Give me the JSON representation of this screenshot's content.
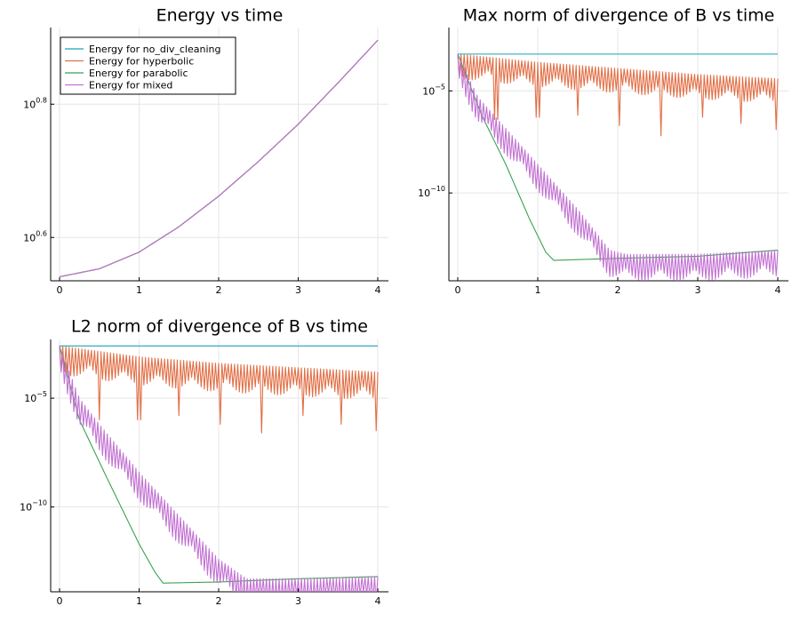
{
  "colors": {
    "no_div_cleaning": "#1aa3b8",
    "hyperbolic": "#e26f46",
    "parabolic": "#3ba151",
    "mixed": "#c271d2"
  },
  "legend": [
    {
      "key": "no_div_cleaning",
      "label": "Energy for no_div_cleaning"
    },
    {
      "key": "hyperbolic",
      "label": "Energy for hyperbolic"
    },
    {
      "key": "parabolic",
      "label": "Energy for parabolic"
    },
    {
      "key": "mixed",
      "label": "Energy for mixed"
    }
  ],
  "chart_data": [
    {
      "type": "line",
      "title": "Energy vs time",
      "xlabel": "",
      "ylabel": "",
      "xlim": [
        0,
        4
      ],
      "xticks": [
        "0",
        "1",
        "2",
        "3",
        "4"
      ],
      "yscale": "log10",
      "ylim_log10": [
        0.535,
        0.915
      ],
      "yticks": [
        {
          "base": "10",
          "exp": "0.6",
          "log10": 0.6
        },
        {
          "base": "10",
          "exp": "0.8",
          "log10": 0.8
        }
      ],
      "grid": true,
      "legend_position": "top-left",
      "series": [
        {
          "key": "no_div_cleaning",
          "name": "Energy for no_div_cleaning",
          "x": [
            0,
            0.5,
            1,
            1.5,
            2,
            2.5,
            3,
            3.5,
            4
          ],
          "log10_y": [
            0.541,
            0.553,
            0.578,
            0.616,
            0.662,
            0.714,
            0.77,
            0.832,
            0.896
          ]
        },
        {
          "key": "hyperbolic",
          "name": "Energy for hyperbolic",
          "x": [
            0,
            0.5,
            1,
            1.5,
            2,
            2.5,
            3,
            3.5,
            4
          ],
          "log10_y": [
            0.541,
            0.553,
            0.578,
            0.616,
            0.662,
            0.714,
            0.77,
            0.832,
            0.896
          ]
        },
        {
          "key": "parabolic",
          "name": "Energy for parabolic",
          "x": [
            0,
            0.5,
            1,
            1.5,
            2,
            2.5,
            3,
            3.5,
            4
          ],
          "log10_y": [
            0.541,
            0.553,
            0.578,
            0.616,
            0.662,
            0.714,
            0.77,
            0.832,
            0.896
          ]
        },
        {
          "key": "mixed",
          "name": "Energy for mixed",
          "x": [
            0,
            0.5,
            1,
            1.5,
            2,
            2.5,
            3,
            3.5,
            4
          ],
          "log10_y": [
            0.541,
            0.553,
            0.578,
            0.616,
            0.662,
            0.714,
            0.77,
            0.832,
            0.896
          ]
        }
      ]
    },
    {
      "type": "line",
      "title": "Max norm of divergence of B vs time",
      "xlabel": "",
      "ylabel": "",
      "xlim": [
        0,
        4
      ],
      "xticks": [
        "0",
        "1",
        "2",
        "3",
        "4"
      ],
      "yscale": "log10",
      "ylim_log10": [
        -14.3,
        -1.9
      ],
      "yticks": [
        {
          "base": "10",
          "exp": "−5",
          "log10": -5
        },
        {
          "base": "10",
          "exp": "−10",
          "log10": -10
        }
      ],
      "grid": true,
      "series": [
        {
          "key": "no_div_cleaning",
          "name": "Energy for no_div_cleaning",
          "x": [
            0,
            4
          ],
          "log10_y": [
            -3.2,
            -3.2
          ]
        },
        {
          "key": "hyperbolic",
          "name": "Energy for hyperbolic",
          "x": [
            0,
            1,
            2,
            3,
            4
          ],
          "log10_y": [
            -3.2,
            -3.6,
            -3.9,
            -4.2,
            -4.4
          ],
          "oscillation": {
            "amplitude_decades": 1.2,
            "period": 0.04
          },
          "dips": [
            {
              "x": 0.48,
              "log10_y": -6.4
            },
            {
              "x": 1.0,
              "log10_y": -6.3
            },
            {
              "x": 1.5,
              "log10_y": -6.2
            },
            {
              "x": 2.03,
              "log10_y": -6.7
            },
            {
              "x": 2.55,
              "log10_y": -7.2
            },
            {
              "x": 3.05,
              "log10_y": -6.3
            },
            {
              "x": 3.55,
              "log10_y": -6.6
            },
            {
              "x": 4.0,
              "log10_y": -6.9
            }
          ]
        },
        {
          "key": "parabolic",
          "name": "Energy for parabolic",
          "x": [
            0,
            0.3,
            0.6,
            0.9,
            1.1,
            1.2,
            2,
            3,
            4
          ],
          "log10_y": [
            -3.2,
            -6.2,
            -8.6,
            -11.3,
            -12.9,
            -13.3,
            -13.2,
            -13.1,
            -12.8
          ]
        },
        {
          "key": "mixed",
          "name": "Energy for mixed",
          "x": [
            0,
            0.25,
            0.5,
            1.0,
            1.5,
            1.9,
            2.1,
            3,
            4
          ],
          "log10_y": [
            -3.2,
            -5.3,
            -6.4,
            -8.6,
            -10.8,
            -12.8,
            -13.0,
            -13.0,
            -12.8
          ],
          "oscillation": {
            "amplitude_decades": 1.3,
            "period": 0.04
          }
        }
      ]
    },
    {
      "type": "line",
      "title": "L2 norm of divergence of B vs time",
      "xlabel": "",
      "ylabel": "",
      "xlim": [
        0,
        4
      ],
      "xticks": [
        "0",
        "1",
        "2",
        "3",
        "4"
      ],
      "yscale": "log10",
      "ylim_log10": [
        -13.9,
        -2.3
      ],
      "yticks": [
        {
          "base": "10",
          "exp": "−5",
          "log10": -5
        },
        {
          "base": "10",
          "exp": "−10",
          "log10": -10
        }
      ],
      "grid": true,
      "series": [
        {
          "key": "no_div_cleaning",
          "name": "Energy for no_div_cleaning",
          "x": [
            0,
            4
          ],
          "log10_y": [
            -2.6,
            -2.6
          ]
        },
        {
          "key": "hyperbolic",
          "name": "Energy for hyperbolic",
          "x": [
            0,
            1,
            2,
            3,
            4
          ],
          "log10_y": [
            -2.6,
            -3.1,
            -3.4,
            -3.6,
            -3.8
          ],
          "oscillation": {
            "amplitude_decades": 1.3,
            "period": 0.04
          },
          "dips": [
            {
              "x": 0.5,
              "log10_y": -6.0
            },
            {
              "x": 1.0,
              "log10_y": -6.0
            },
            {
              "x": 1.5,
              "log10_y": -5.8
            },
            {
              "x": 2.03,
              "log10_y": -6.2
            },
            {
              "x": 2.55,
              "log10_y": -6.6
            },
            {
              "x": 3.05,
              "log10_y": -5.8
            },
            {
              "x": 3.55,
              "log10_y": -6.2
            },
            {
              "x": 4.0,
              "log10_y": -6.5
            }
          ]
        },
        {
          "key": "parabolic",
          "name": "Energy for parabolic",
          "x": [
            0,
            0.25,
            0.6,
            1.0,
            1.2,
            1.3,
            2,
            3,
            4
          ],
          "log10_y": [
            -2.6,
            -6.0,
            -8.7,
            -11.7,
            -13.0,
            -13.5,
            -13.45,
            -13.3,
            -13.2
          ]
        },
        {
          "key": "mixed",
          "name": "Energy for mixed",
          "x": [
            0,
            0.25,
            0.5,
            1.0,
            1.5,
            2.0,
            2.35,
            3,
            4
          ],
          "log10_y": [
            -2.6,
            -5.0,
            -6.2,
            -8.4,
            -10.4,
            -12.4,
            -13.3,
            -13.3,
            -13.2
          ],
          "oscillation": {
            "amplitude_decades": 1.3,
            "period": 0.04
          }
        }
      ]
    }
  ]
}
